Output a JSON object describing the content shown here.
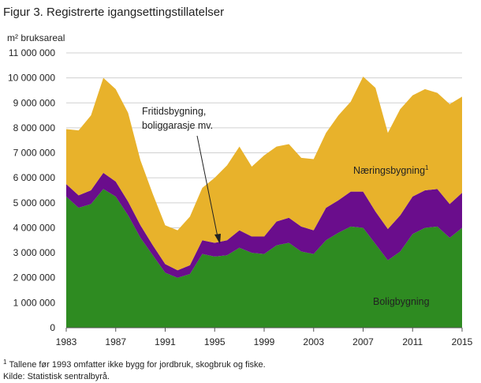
{
  "title": "Figur 3. Registrerte igangsettingstillatelser",
  "chart_data": {
    "type": "area",
    "stacked": true,
    "ylabel": "m² bruksareal",
    "ylim": [
      0,
      11000000
    ],
    "yticks": [
      0,
      1000000,
      2000000,
      3000000,
      4000000,
      5000000,
      6000000,
      7000000,
      8000000,
      9000000,
      10000000,
      11000000
    ],
    "ytick_labels": [
      "0",
      "1 000 000",
      "2 000 000",
      "3 000 000",
      "4 000 000",
      "5 000 000",
      "6 000 000",
      "7 000 000",
      "8 000 000",
      "9 000 000",
      "10 000 000",
      "11 000 000"
    ],
    "xlim": [
      1983,
      2015
    ],
    "xticks": [
      1983,
      1987,
      1991,
      1995,
      1999,
      2003,
      2007,
      2011,
      2015
    ],
    "grid": true,
    "x": [
      1983,
      1984,
      1985,
      1986,
      1987,
      1988,
      1989,
      1990,
      1991,
      1992,
      1993,
      1994,
      1995,
      1996,
      1997,
      1998,
      1999,
      2000,
      2001,
      2002,
      2003,
      2004,
      2005,
      2006,
      2007,
      2008,
      2009,
      2010,
      2011,
      2012,
      2013,
      2014,
      2015
    ],
    "series": [
      {
        "name": "Boligbygning",
        "color": "#2e8b21",
        "values": [
          5250000,
          4800000,
          4950000,
          5550000,
          5250000,
          4500000,
          3600000,
          2900000,
          2200000,
          2000000,
          2150000,
          2950000,
          2850000,
          2900000,
          3200000,
          3000000,
          2950000,
          3300000,
          3400000,
          3050000,
          2950000,
          3500000,
          3800000,
          4050000,
          4000000,
          3350000,
          2700000,
          3050000,
          3750000,
          4000000,
          4050000,
          3600000,
          4000000
        ]
      },
      {
        "name": "Fritidsbygning, boliggarasje mv.",
        "color": "#6a0d8c",
        "values": [
          500000,
          500000,
          550000,
          650000,
          600000,
          550000,
          500000,
          400000,
          350000,
          300000,
          350000,
          550000,
          550000,
          600000,
          700000,
          650000,
          700000,
          950000,
          1000000,
          1000000,
          950000,
          1300000,
          1300000,
          1400000,
          1450000,
          1300000,
          1250000,
          1450000,
          1500000,
          1500000,
          1500000,
          1350000,
          1400000
        ]
      },
      {
        "name": "Næringsbygning",
        "color": "#e8b22b",
        "values": [
          2200000,
          2600000,
          3000000,
          3800000,
          3700000,
          3550000,
          2600000,
          2050000,
          1550000,
          1600000,
          1950000,
          2100000,
          2600000,
          3000000,
          3350000,
          2800000,
          3250000,
          3000000,
          2950000,
          2750000,
          2850000,
          3000000,
          3400000,
          3600000,
          4600000,
          4950000,
          3850000,
          4250000,
          4050000,
          4050000,
          3850000,
          4000000,
          3850000
        ]
      }
    ],
    "labels": {
      "bolig": "Boligbygning",
      "naering": "Næringsbygning",
      "naering_sup": "1",
      "fritid_line1": "Fritidsbygning,",
      "fritid_line2": "boliggarasje  mv."
    }
  },
  "footnote": "Tallene før 1993 omfatter ikke bygg for jordbruk, skogbruk og fiske.",
  "footnote_marker": "1",
  "source": "Kilde: Statistisk sentralbyrå."
}
